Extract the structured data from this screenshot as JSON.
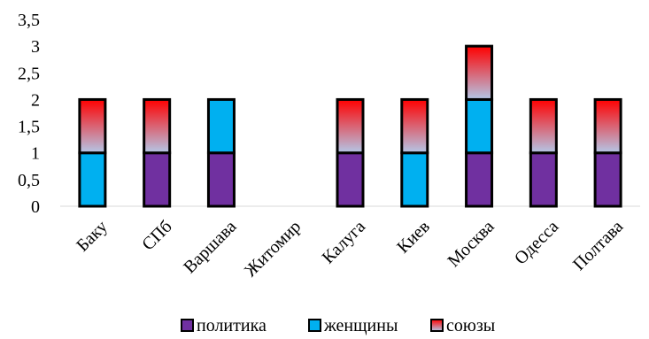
{
  "chart_data": {
    "type": "bar",
    "stacked": true,
    "categories": [
      "Баку",
      "СПб",
      "Варшава",
      "Житомир",
      "Калуга",
      "Киев",
      "Москва",
      "Одесса",
      "Полтава"
    ],
    "series": [
      {
        "name": "политика",
        "values": [
          0,
          1,
          1,
          0,
          1,
          0,
          1,
          1,
          1
        ]
      },
      {
        "name": "женщины",
        "values": [
          1,
          0,
          1,
          0,
          0,
          1,
          1,
          0,
          0
        ]
      },
      {
        "name": "союзы",
        "values": [
          1,
          1,
          0,
          0,
          1,
          1,
          1,
          1,
          1
        ]
      }
    ],
    "ylim": [
      0,
      3.5
    ],
    "yticks": [
      "0",
      "0,5",
      "1",
      "1,5",
      "2",
      "2,5",
      "3",
      "3,5"
    ],
    "grid": false,
    "legend_position": "bottom",
    "colors": {
      "politika": "#7030a0",
      "zhenshchiny": "#00b0f0",
      "soyuzy_top": "#ff0000",
      "soyuzy_bottom": "#b4c7e7",
      "outline": "#000000"
    }
  }
}
